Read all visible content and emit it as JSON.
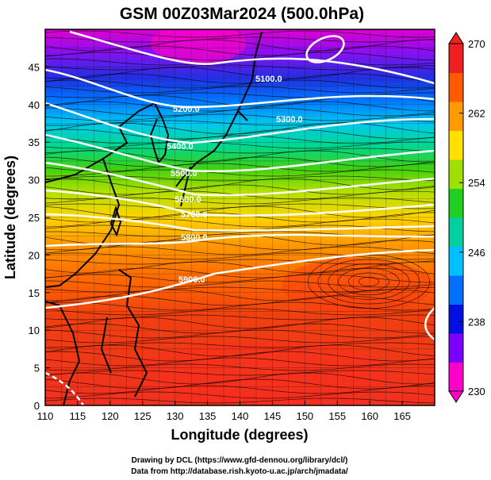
{
  "title": "GSM 00Z03Mar2024 (500.0hPa)",
  "xaxis": {
    "label": "Longitude (degrees)",
    "range": [
      110,
      170
    ],
    "ticks": [
      "110",
      "115",
      "120",
      "125",
      "130",
      "135",
      "140",
      "145",
      "150",
      "155",
      "160",
      "165"
    ]
  },
  "yaxis": {
    "label": "Latitude  (degrees)",
    "range": [
      0,
      50
    ],
    "ticks": [
      "0",
      "5",
      "10",
      "15",
      "20",
      "25",
      "30",
      "35",
      "40",
      "45"
    ]
  },
  "colorbar": {
    "range": [
      230,
      270
    ],
    "ticks": [
      "230",
      "238",
      "246",
      "254",
      "262",
      "270"
    ],
    "colors": [
      "#ff00c8",
      "#7a00ff",
      "#0010e0",
      "#0070ff",
      "#00c0ff",
      "#00d0a0",
      "#20d020",
      "#a0e000",
      "#ffe000",
      "#ff9a00",
      "#ff5a00",
      "#f02020"
    ]
  },
  "contours": {
    "color": "#ffffff",
    "labels": [
      "5100.0",
      "5200.0",
      "5300.0",
      "5400.0",
      "5500.0",
      "5600.0",
      "5700.0",
      "5800.0",
      "5900.0"
    ]
  },
  "footer": {
    "line1": "Drawing by DCL (https://www.gfd-dennou.org/library/dcl/)",
    "line2": "Data from http://database.rish.kyoto-u.ac.jp/arch/jmadata/"
  }
}
